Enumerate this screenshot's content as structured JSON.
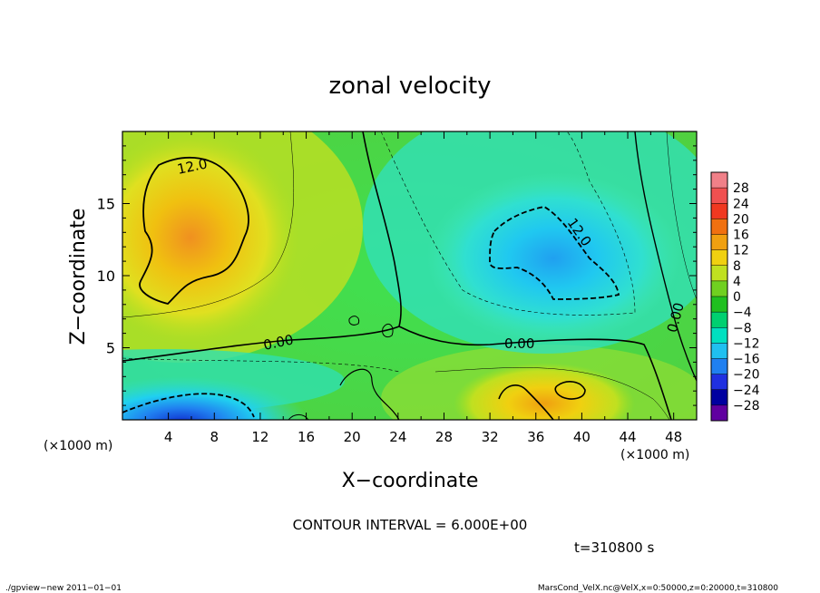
{
  "chart_data": {
    "type": "heatmap",
    "title": "zonal velocity",
    "xlabel": "X−coordinate",
    "ylabel": "Z−coordinate",
    "x_unit": "(×1000 m)",
    "y_unit": "(×1000 m)",
    "xlim": [
      0,
      50
    ],
    "ylim": [
      0,
      20
    ],
    "x_ticks": [
      4,
      8,
      12,
      16,
      20,
      24,
      28,
      32,
      36,
      40,
      44,
      48
    ],
    "y_ticks": [
      5,
      10,
      15
    ],
    "colorbar": {
      "labels": [
        "28",
        "24",
        "20",
        "16",
        "12",
        "8",
        "4",
        "0",
        "−4",
        "−8",
        "−12",
        "−16",
        "−20",
        "−24",
        "−28"
      ],
      "colors": [
        "#f08088",
        "#f05050",
        "#f03820",
        "#f07010",
        "#f0a010",
        "#f0d010",
        "#c0e020",
        "#70d020",
        "#20c020",
        "#00d070",
        "#00e0c0",
        "#20c0f0",
        "#2080f0",
        "#2030e0",
        "#0000a0",
        "#6000a0"
      ]
    },
    "contour_interval_text": "CONTOUR INTERVAL = 6.000E+00",
    "time_text": "t=310800 s",
    "contour_labels": [
      "12.0",
      "0.00",
      "0.00",
      "12.0",
      "0.00"
    ],
    "field_regions": [
      {
        "name": "positive-upper-left",
        "center": [
          6,
          13.5
        ],
        "peak": 16
      },
      {
        "name": "negative-upper-right",
        "center": [
          39,
          10.5
        ],
        "peak": -12
      },
      {
        "name": "negative-lower-left",
        "center": [
          6,
          0.8
        ],
        "peak": -20
      },
      {
        "name": "positive-lower-right",
        "center": [
          37,
          1.2
        ],
        "peak": 14
      }
    ]
  },
  "footer": {
    "left": "./gpview−new  2011−01−01",
    "right": "MarsCond_VelX.nc@VelX,x=0:50000,z=0:20000,t=310800"
  }
}
